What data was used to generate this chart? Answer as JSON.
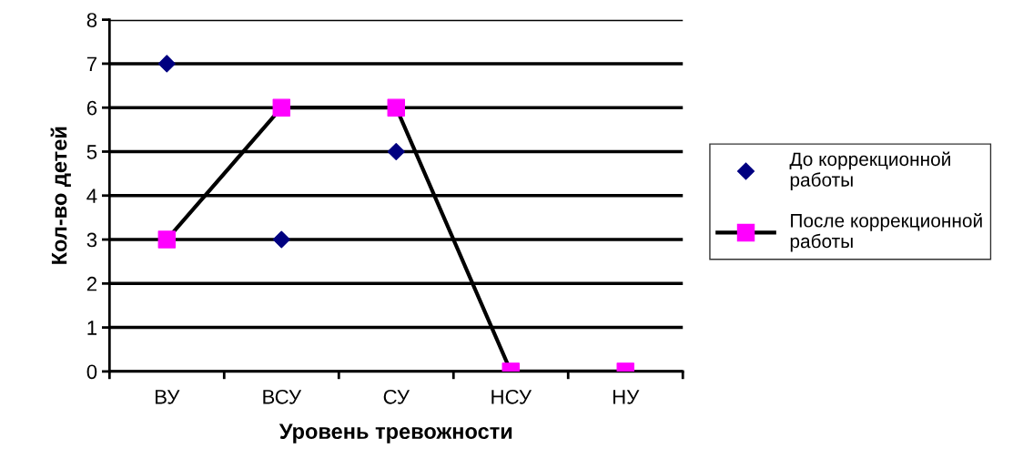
{
  "chart_data": {
    "type": "line",
    "xlabel": "Уровень тревожности",
    "ylabel": "Кол-во детей",
    "categories": [
      "ВУ",
      "ВСУ",
      "СУ",
      "НСУ",
      "НУ"
    ],
    "series": [
      {
        "name": "До коррекционной работы",
        "type": "scatter",
        "color": "#000080",
        "marker": "diamond",
        "values": [
          7,
          3,
          5,
          null,
          null
        ]
      },
      {
        "name": "После коррекционной работы",
        "color": "#000000",
        "colors": [
          "#ff00ff",
          "#ff00ff",
          "#ff00ff",
          "#ff00ff",
          "#ff00ff"
        ],
        "marker": "square",
        "line_style": "solid",
        "values": [
          3,
          6,
          6,
          0,
          0
        ]
      }
    ],
    "ylim": [
      0,
      8
    ],
    "yticks": [
      0,
      1,
      2,
      3,
      4,
      5,
      6,
      7,
      8
    ],
    "grid": "y",
    "legend": "right"
  }
}
